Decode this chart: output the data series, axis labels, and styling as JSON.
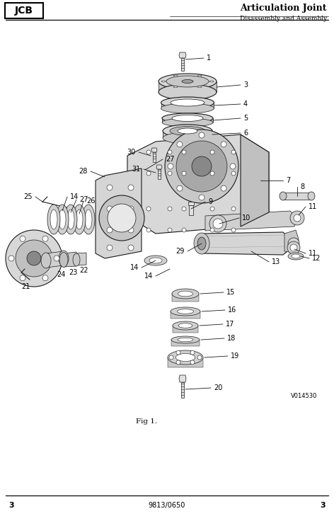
{
  "title": "Articulation Joint",
  "subtitle": "Disassembly and Assembly",
  "fig_label": "Fig 1.",
  "doc_ref": "9813/0650",
  "image_ref": "V014530",
  "page_num": "3",
  "bg_color": "#ffffff",
  "lc": "#1a1a1a",
  "fc_light": "#e8e8e8",
  "fc_mid": "#cccccc",
  "fc_dark": "#aaaaaa",
  "figsize": [
    4.72,
    7.29
  ],
  "dpi": 100
}
